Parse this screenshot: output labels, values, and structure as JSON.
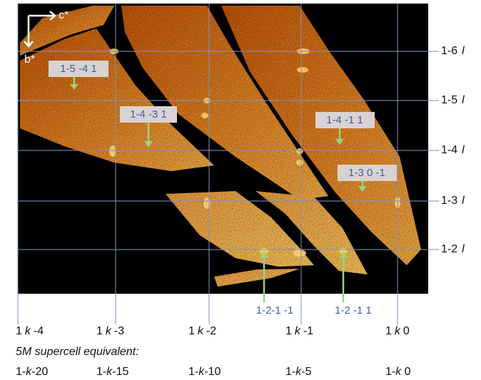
{
  "axes": {
    "horizontal": "c*",
    "vertical": "b*"
  },
  "row_labels": [
    {
      "index": "1-6",
      "letter": "l"
    },
    {
      "index": "1-5",
      "letter": "l"
    },
    {
      "index": "1-4",
      "letter": "l"
    },
    {
      "index": "1-3",
      "letter": "l"
    },
    {
      "index": "1-2",
      "letter": "l"
    }
  ],
  "annotations": [
    "1-5 -4 1",
    "1-4 -3 1",
    "1-4 -1 1",
    "1-3 0 -1"
  ],
  "bottom_annotations": [
    "1-2-1 -1",
    "1-2 -1 1"
  ],
  "column_labels": [
    {
      "h": "1",
      "k": "k",
      "l": "-4"
    },
    {
      "h": "1",
      "k": "k",
      "l": "-3"
    },
    {
      "h": "1",
      "k": "k",
      "l": "-2"
    },
    {
      "h": "1",
      "k": "k",
      "l": "-1"
    },
    {
      "h": "1",
      "k": "k",
      "l": "0"
    }
  ],
  "supercell_title": "5M supercell equivalent:",
  "supercell_labels": [
    {
      "pre": "1-",
      "k": "k",
      "post": "-20"
    },
    {
      "pre": "1-",
      "k": "k",
      "post": "-15"
    },
    {
      "pre": "1-",
      "k": "k",
      "post": "-10"
    },
    {
      "pre": "1-",
      "k": "k",
      "post": "-5"
    },
    {
      "pre": "1-",
      "k": "k",
      "post": " 0"
    }
  ]
}
